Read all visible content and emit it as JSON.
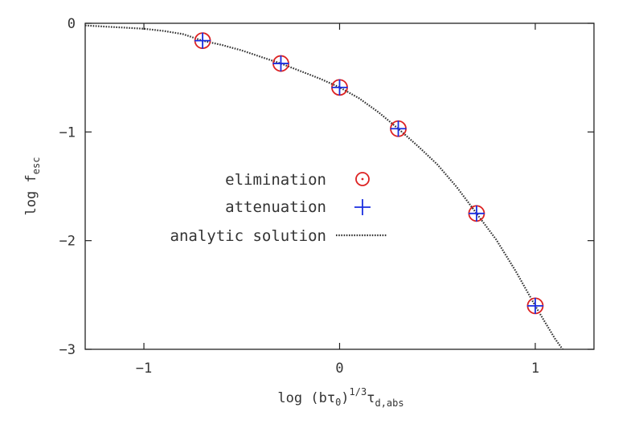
{
  "chart_data": {
    "type": "scatter",
    "title": "",
    "xlabel": {
      "prefix": "log (b",
      "tau": "τ",
      "tau_sub": "0",
      "close": ")",
      "exponent": "1/3",
      "tau2": "τ",
      "tau2_sub": "d,abs"
    },
    "ylabel": {
      "prefix": "log f",
      "sub": "esc"
    },
    "xlim": [
      -1.3,
      1.3
    ],
    "ylim": [
      -3,
      0
    ],
    "xticks": [
      {
        "value": -1,
        "label": "−1"
      },
      {
        "value": 0,
        "label": "0"
      },
      {
        "value": 1,
        "label": "1"
      }
    ],
    "yticks": [
      {
        "value": 0,
        "label": "0"
      },
      {
        "value": -1,
        "label": "−1"
      },
      {
        "value": -2,
        "label": "−2"
      },
      {
        "value": -3,
        "label": "−3"
      }
    ],
    "grid": false,
    "legend": "center-left",
    "colors": {
      "elimination": "#dd2222",
      "attenuation": "#1a2ee0",
      "analytic": "#333333",
      "axis": "#222222"
    },
    "series": [
      {
        "name": "elimination",
        "marker": "circle-dot",
        "x": [
          -0.7,
          -0.3,
          0.0,
          0.3,
          0.7,
          1.0
        ],
        "y": [
          -0.16,
          -0.37,
          -0.59,
          -0.97,
          -1.75,
          -2.6
        ]
      },
      {
        "name": "attenuation",
        "marker": "plus",
        "x": [
          -0.7,
          -0.3,
          0.0,
          0.3,
          0.7,
          1.0
        ],
        "y": [
          -0.16,
          -0.37,
          -0.59,
          -0.97,
          -1.75,
          -2.6
        ]
      },
      {
        "name": "analytic solution",
        "marker": "dotted-line",
        "x": [
          -1.3,
          -1.2,
          -1.1,
          -1.0,
          -0.9,
          -0.8,
          -0.7,
          -0.6,
          -0.5,
          -0.4,
          -0.3,
          -0.2,
          -0.1,
          0.0,
          0.1,
          0.2,
          0.3,
          0.4,
          0.5,
          0.6,
          0.7,
          0.8,
          0.9,
          1.0,
          1.05,
          1.1,
          1.14
        ],
        "y": [
          -0.02,
          -0.03,
          -0.04,
          -0.05,
          -0.07,
          -0.1,
          -0.16,
          -0.2,
          -0.25,
          -0.31,
          -0.37,
          -0.44,
          -0.51,
          -0.59,
          -0.69,
          -0.82,
          -0.97,
          -1.13,
          -1.3,
          -1.51,
          -1.75,
          -1.99,
          -2.28,
          -2.6,
          -2.75,
          -2.9,
          -3.0
        ]
      }
    ]
  }
}
